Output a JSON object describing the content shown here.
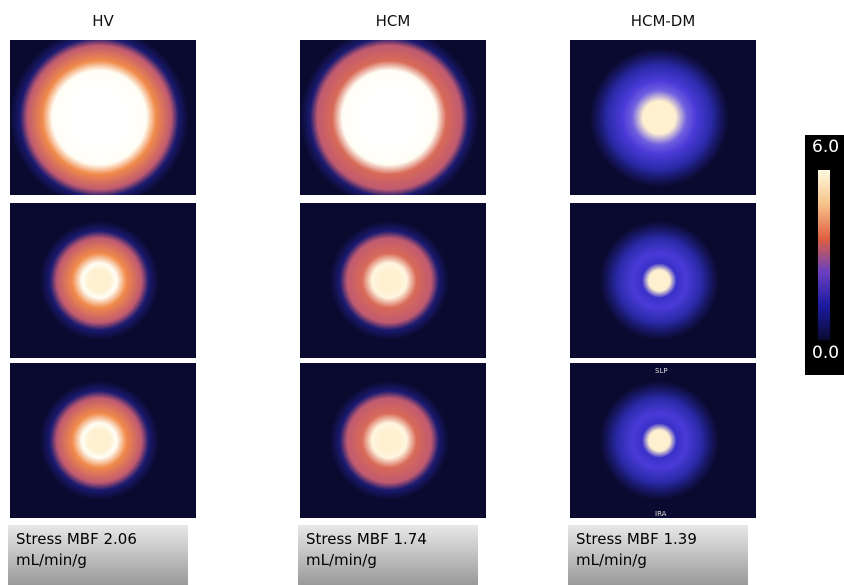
{
  "columns": [
    {
      "title": "HV",
      "caption": "Stress MBF 2.06 mL/min/g"
    },
    {
      "title": "HCM",
      "caption": "Stress MBF 1.74 mL/min/g"
    },
    {
      "title": "HCM-DM",
      "caption": "Stress MBF 1.39 mL/min/g"
    }
  ],
  "colorbar": {
    "max": "6.0",
    "min": "0.0"
  },
  "image_labels": {
    "top": "SLP",
    "bottom": "IRA"
  }
}
